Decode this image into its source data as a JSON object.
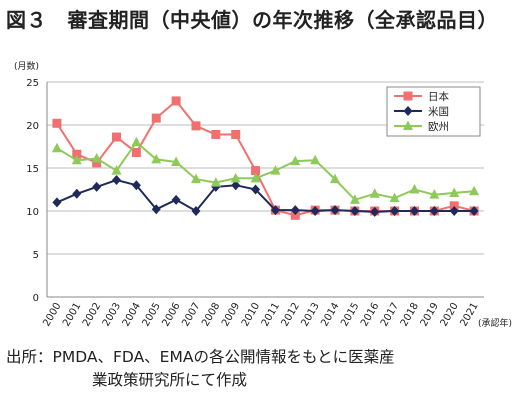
{
  "figure": {
    "title": "図３　審査期間（中央値）の年次推移（全承認品目）",
    "source_line1": "出所：PMDA、FDA、EMAの各公開情報をもとに医薬産",
    "source_line2": "業政策研究所にて作成"
  },
  "chart_data": {
    "type": "line",
    "title": "",
    "xlabel": "(承認年)",
    "ylabel": "(月数)",
    "ylim": [
      0,
      25
    ],
    "yticks": [
      0,
      5,
      10,
      15,
      20,
      25
    ],
    "grid": true,
    "legend_position": "top-right",
    "x": [
      "2000",
      "2001",
      "2002",
      "2003",
      "2004",
      "2005",
      "2006",
      "2007",
      "2008",
      "2009",
      "2010",
      "2011",
      "2012",
      "2013",
      "2014",
      "2015",
      "2016",
      "2017",
      "2018",
      "2019",
      "2020",
      "2021"
    ],
    "series": [
      {
        "name": "日本",
        "color": "#f07070",
        "marker": "square",
        "values": [
          20.2,
          16.6,
          15.6,
          18.6,
          16.8,
          20.8,
          22.8,
          19.9,
          18.9,
          18.9,
          14.7,
          10.1,
          9.5,
          10.1,
          10.1,
          10.0,
          10.0,
          10.0,
          10.0,
          10.0,
          10.6,
          10.0
        ]
      },
      {
        "name": "米国",
        "color": "#1f2a5a",
        "marker": "diamond",
        "values": [
          11.0,
          12.0,
          12.8,
          13.6,
          13.0,
          10.2,
          11.3,
          10.0,
          12.8,
          13.0,
          12.5,
          10.1,
          10.1,
          10.0,
          10.1,
          10.0,
          9.9,
          10.0,
          10.0,
          10.0,
          10.0,
          10.0
        ]
      },
      {
        "name": "欧州",
        "color": "#8dca5a",
        "marker": "triangle",
        "values": [
          17.3,
          15.9,
          16.1,
          14.7,
          18.0,
          16.0,
          15.7,
          13.7,
          13.3,
          13.8,
          13.8,
          14.7,
          15.8,
          15.9,
          13.7,
          11.3,
          12.0,
          11.5,
          12.5,
          11.9,
          12.1,
          12.3
        ]
      }
    ]
  }
}
